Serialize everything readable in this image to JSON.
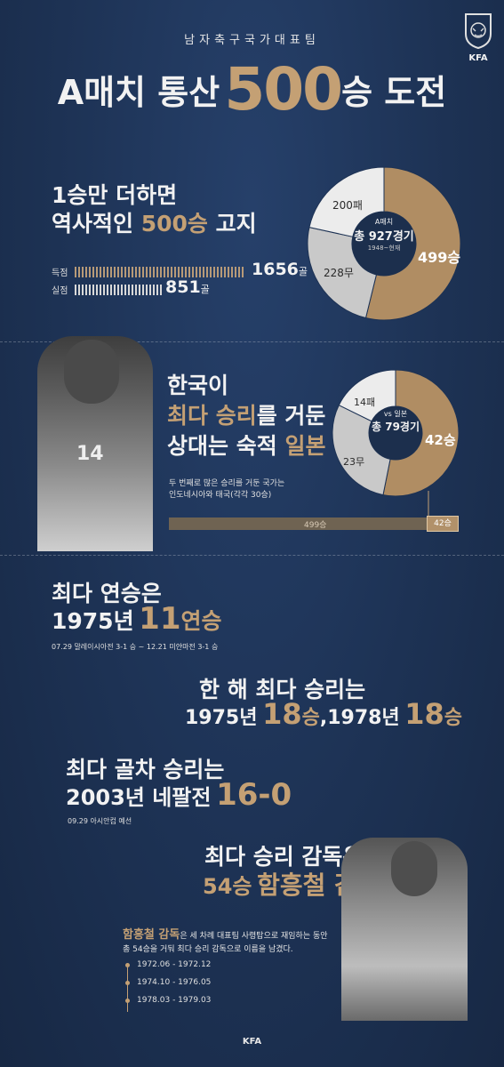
{
  "brand": {
    "logo_text": "KFA",
    "footer": "KFA"
  },
  "header": {
    "subtitle": "남자축구국가대표팀",
    "title_pre": "A매치 통산",
    "title_num": "500",
    "title_post": "승 도전"
  },
  "sec1": {
    "line1": "1승만 더하면",
    "line2_pre": "역사적인",
    "line2_gold": "500승",
    "line2_post": "고지",
    "goals_label": "득점",
    "goals_value": "1656",
    "goals_unit": "골",
    "conceded_label": "실점",
    "conceded_value": "851",
    "conceded_unit": "골",
    "donut": {
      "center_top": "A매치",
      "center_main": "총 927경기",
      "center_sub": "1948~현재",
      "win_label": "499승",
      "draw_label": "228무",
      "loss_label": "200패",
      "win": 499,
      "draw": 228,
      "loss": 200
    }
  },
  "sec2": {
    "line1": "한국이",
    "line2_gold": "최다 승리",
    "line2_post": "를 거둔",
    "line3_pre": "상대는 숙적",
    "line3_gold": "일본",
    "note1": "두 번째로 많은 승리를 거둔 국가는",
    "note2": "인도네시아와 태국(각각 30승)",
    "bar_total": "499승",
    "bar_part": "42승",
    "bar_fraction": 0.084,
    "donut": {
      "center_top": "vs 일본",
      "center_main": "총 79경기",
      "win_label": "42승",
      "draw_label": "23무",
      "loss_label": "14패",
      "win": 42,
      "draw": 23,
      "loss": 14
    },
    "jersey_number": "14"
  },
  "sec3": {
    "line1": "최다 연승은",
    "line2_pre": "1975년",
    "line2_num": "11",
    "line2_post": "연승",
    "note": "07.29 말레이시아전 3-1 승 ~ 12.21 미얀마전 3-1 승"
  },
  "sec4": {
    "line1": "한 해 최다 승리는",
    "line2_a": "1975년",
    "line2_a_num": "18",
    "line2_a_unit": "승",
    "line2_sep": ",",
    "line2_b": "1978년",
    "line2_b_num": "18",
    "line2_b_unit": "승"
  },
  "sec5": {
    "line1": "최다 골차 승리는",
    "line2_pre": "2003년 네팔전",
    "line2_score": "16-0",
    "note": "09.29 아시안컵 예선"
  },
  "sec6": {
    "line1": "최다 승리 감독은",
    "line2_num": "54승",
    "line2_name": "함흥철 감독",
    "desc_name": "함흥철 감독",
    "desc_rest1": "은 세 차례 대표팀 사령탑으로 재임하는 동안",
    "desc_line2": "총 54승을 거둬 최다 승리 감독으로 이름을 남겼다.",
    "periods": [
      "1972.06 - 1972.12",
      "1974.10 - 1976.05",
      "1978.03 - 1979.03"
    ]
  }
}
